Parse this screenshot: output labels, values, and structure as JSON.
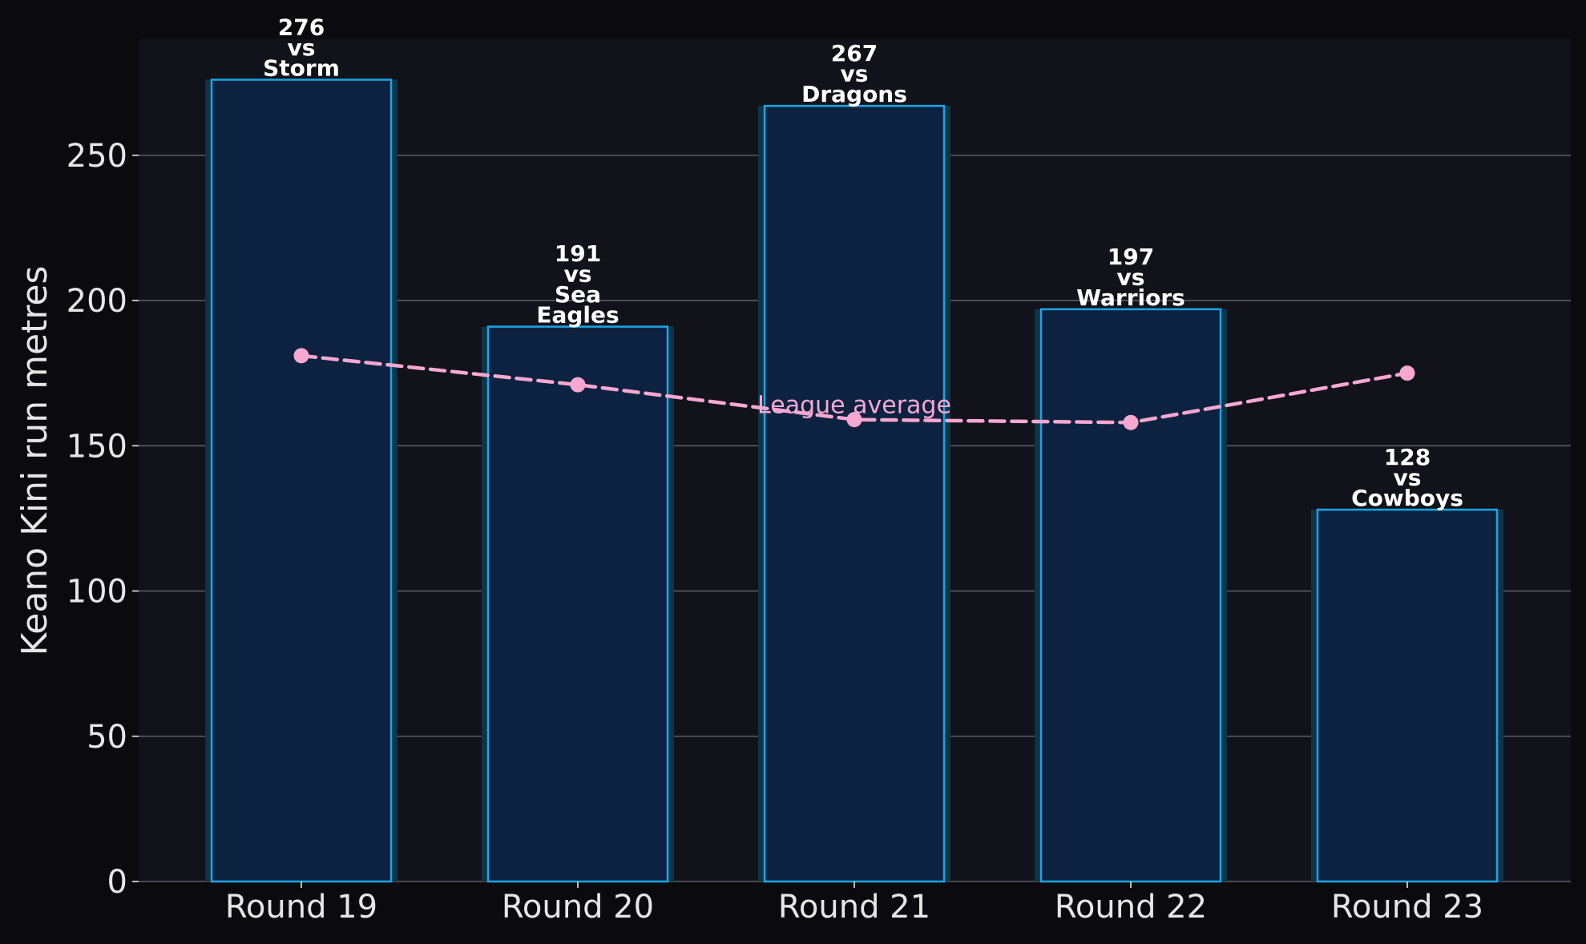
{
  "chart_data": {
    "type": "bar",
    "categories": [
      "Round 19",
      "Round 20",
      "Round 21",
      "Round 22",
      "Round 23"
    ],
    "series": [
      {
        "values": [
          276,
          191,
          267,
          197,
          128
        ],
        "bar_labels": [
          [
            "276",
            "vs",
            "Storm"
          ],
          [
            "191",
            "vs",
            "Sea",
            "Eagles"
          ],
          [
            "267",
            "vs",
            "Dragons"
          ],
          [
            "197",
            "vs",
            "Warriors"
          ],
          [
            "128",
            "vs",
            "Cowboys"
          ]
        ]
      },
      {
        "name": "League average",
        "type": "line",
        "style": "dashed",
        "values": [
          181,
          171,
          159,
          158,
          175
        ]
      }
    ],
    "xlabel": "",
    "ylabel": "Keano Kini run metres",
    "ylim": [
      0,
      290
    ],
    "yticks": [
      0,
      50,
      100,
      150,
      200,
      250
    ],
    "grid": "horizontal",
    "colors": {
      "background": "#0b0b0f",
      "plot_background": "#12121a",
      "bar_fill": "#0c2240",
      "bar_edge": "#1aa6e6",
      "bar_glow": "#0d3448",
      "line": "#f7a8d0",
      "grid": "#5f5f66",
      "text": "#e6e6e6"
    }
  }
}
